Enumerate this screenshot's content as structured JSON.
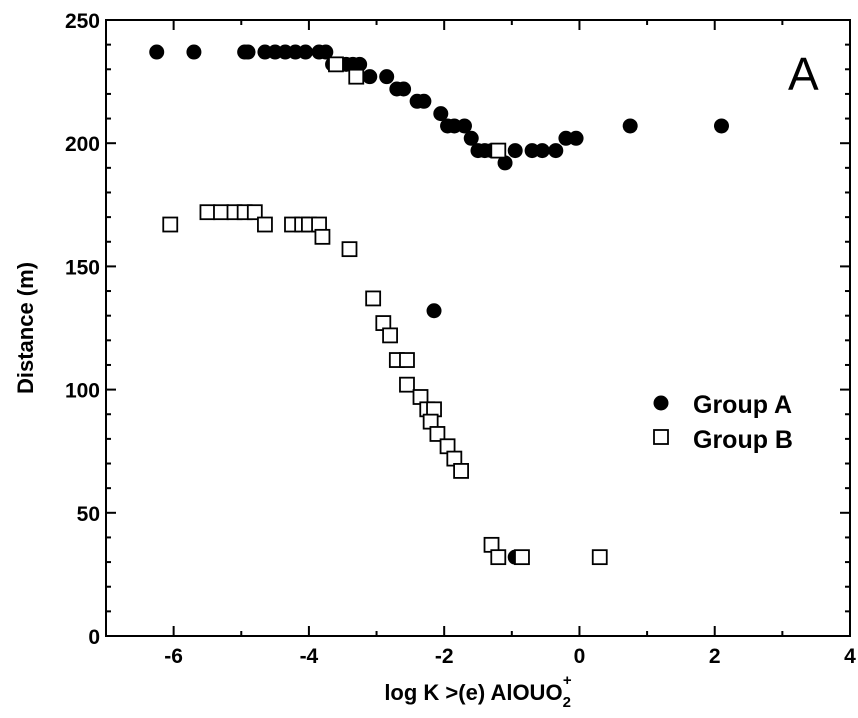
{
  "chart_data": {
    "type": "scatter",
    "panel_label": "A",
    "xlabel": "log K >(e) AlOUO",
    "xlabel_sub": "2",
    "xlabel_sup": "+",
    "ylabel": "Distance (m)",
    "xlim": [
      -7,
      4
    ],
    "ylim": [
      0,
      250
    ],
    "x_ticks": [
      -6,
      -4,
      -2,
      0,
      2,
      4
    ],
    "x_tick_labels": [
      "-6",
      "-4",
      "-2",
      "0",
      "2",
      "4"
    ],
    "y_ticks": [
      0,
      50,
      100,
      150,
      200,
      250
    ],
    "y_tick_labels": [
      "0",
      "50",
      "100",
      "150",
      "200",
      "250"
    ],
    "grid": false,
    "legend_position": "right",
    "series": [
      {
        "name": "Group A",
        "marker": "filled-circle",
        "color": "#000000",
        "points": [
          [
            -6.25,
            237
          ],
          [
            -5.7,
            237
          ],
          [
            -4.95,
            237
          ],
          [
            -4.9,
            237
          ],
          [
            -4.65,
            237
          ],
          [
            -4.5,
            237
          ],
          [
            -4.35,
            237
          ],
          [
            -4.2,
            237
          ],
          [
            -4.05,
            237
          ],
          [
            -3.85,
            237
          ],
          [
            -3.75,
            237
          ],
          [
            -3.65,
            232
          ],
          [
            -3.55,
            232
          ],
          [
            -3.45,
            232
          ],
          [
            -3.35,
            232
          ],
          [
            -3.25,
            232
          ],
          [
            -3.1,
            227
          ],
          [
            -2.85,
            227
          ],
          [
            -2.7,
            222
          ],
          [
            -2.6,
            222
          ],
          [
            -2.4,
            217
          ],
          [
            -2.3,
            217
          ],
          [
            -2.05,
            212
          ],
          [
            -1.95,
            207
          ],
          [
            -1.85,
            207
          ],
          [
            -1.7,
            207
          ],
          [
            -1.6,
            202
          ],
          [
            -1.5,
            197
          ],
          [
            -1.4,
            197
          ],
          [
            -1.3,
            197
          ],
          [
            -1.1,
            192
          ],
          [
            -0.95,
            197
          ],
          [
            -0.7,
            197
          ],
          [
            -0.55,
            197
          ],
          [
            -0.35,
            197
          ],
          [
            -0.2,
            202
          ],
          [
            -0.05,
            202
          ],
          [
            0.75,
            207
          ],
          [
            2.1,
            207
          ],
          [
            -2.15,
            132
          ],
          [
            -0.95,
            32
          ]
        ]
      },
      {
        "name": "Group B",
        "marker": "open-square",
        "color": "#000000",
        "points": [
          [
            -6.05,
            167
          ],
          [
            -5.5,
            172
          ],
          [
            -5.3,
            172
          ],
          [
            -5.1,
            172
          ],
          [
            -4.95,
            172
          ],
          [
            -4.8,
            172
          ],
          [
            -4.65,
            167
          ],
          [
            -4.25,
            167
          ],
          [
            -4.1,
            167
          ],
          [
            -4.0,
            167
          ],
          [
            -3.85,
            167
          ],
          [
            -3.8,
            162
          ],
          [
            -3.4,
            157
          ],
          [
            -3.05,
            137
          ],
          [
            -2.9,
            127
          ],
          [
            -2.8,
            122
          ],
          [
            -2.7,
            112
          ],
          [
            -2.55,
            112
          ],
          [
            -2.55,
            102
          ],
          [
            -2.35,
            97
          ],
          [
            -2.25,
            92
          ],
          [
            -2.15,
            92
          ],
          [
            -2.2,
            87
          ],
          [
            -2.1,
            82
          ],
          [
            -1.95,
            77
          ],
          [
            -1.85,
            72
          ],
          [
            -1.75,
            67
          ],
          [
            -1.3,
            37
          ],
          [
            -1.2,
            32
          ],
          [
            -0.85,
            32
          ],
          [
            0.3,
            32
          ],
          [
            -3.6,
            232
          ],
          [
            -3.3,
            227
          ],
          [
            -1.2,
            197
          ]
        ]
      }
    ]
  }
}
